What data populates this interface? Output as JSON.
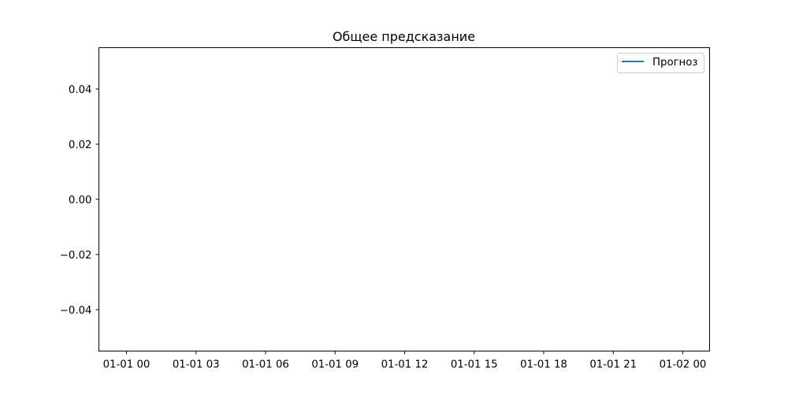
{
  "chart_data": {
    "type": "line",
    "title": "Общее предсказание",
    "xlabel": "",
    "ylabel": "",
    "x_ticks": [
      "01-01 00",
      "01-01 03",
      "01-01 06",
      "01-01 09",
      "01-01 12",
      "01-01 15",
      "01-01 18",
      "01-01 21",
      "01-02 00"
    ],
    "y_ticks": [
      "0.04",
      "0.02",
      "0.00",
      "−0.02",
      "−0.04"
    ],
    "y_tick_values": [
      0.04,
      0.02,
      0.0,
      -0.02,
      -0.04
    ],
    "ylim": [
      -0.055,
      0.055
    ],
    "series": [
      {
        "name": "Прогноз",
        "color": "#1f77b4",
        "x": [],
        "y": []
      }
    ],
    "legend_position": "top-right",
    "grid": false
  }
}
